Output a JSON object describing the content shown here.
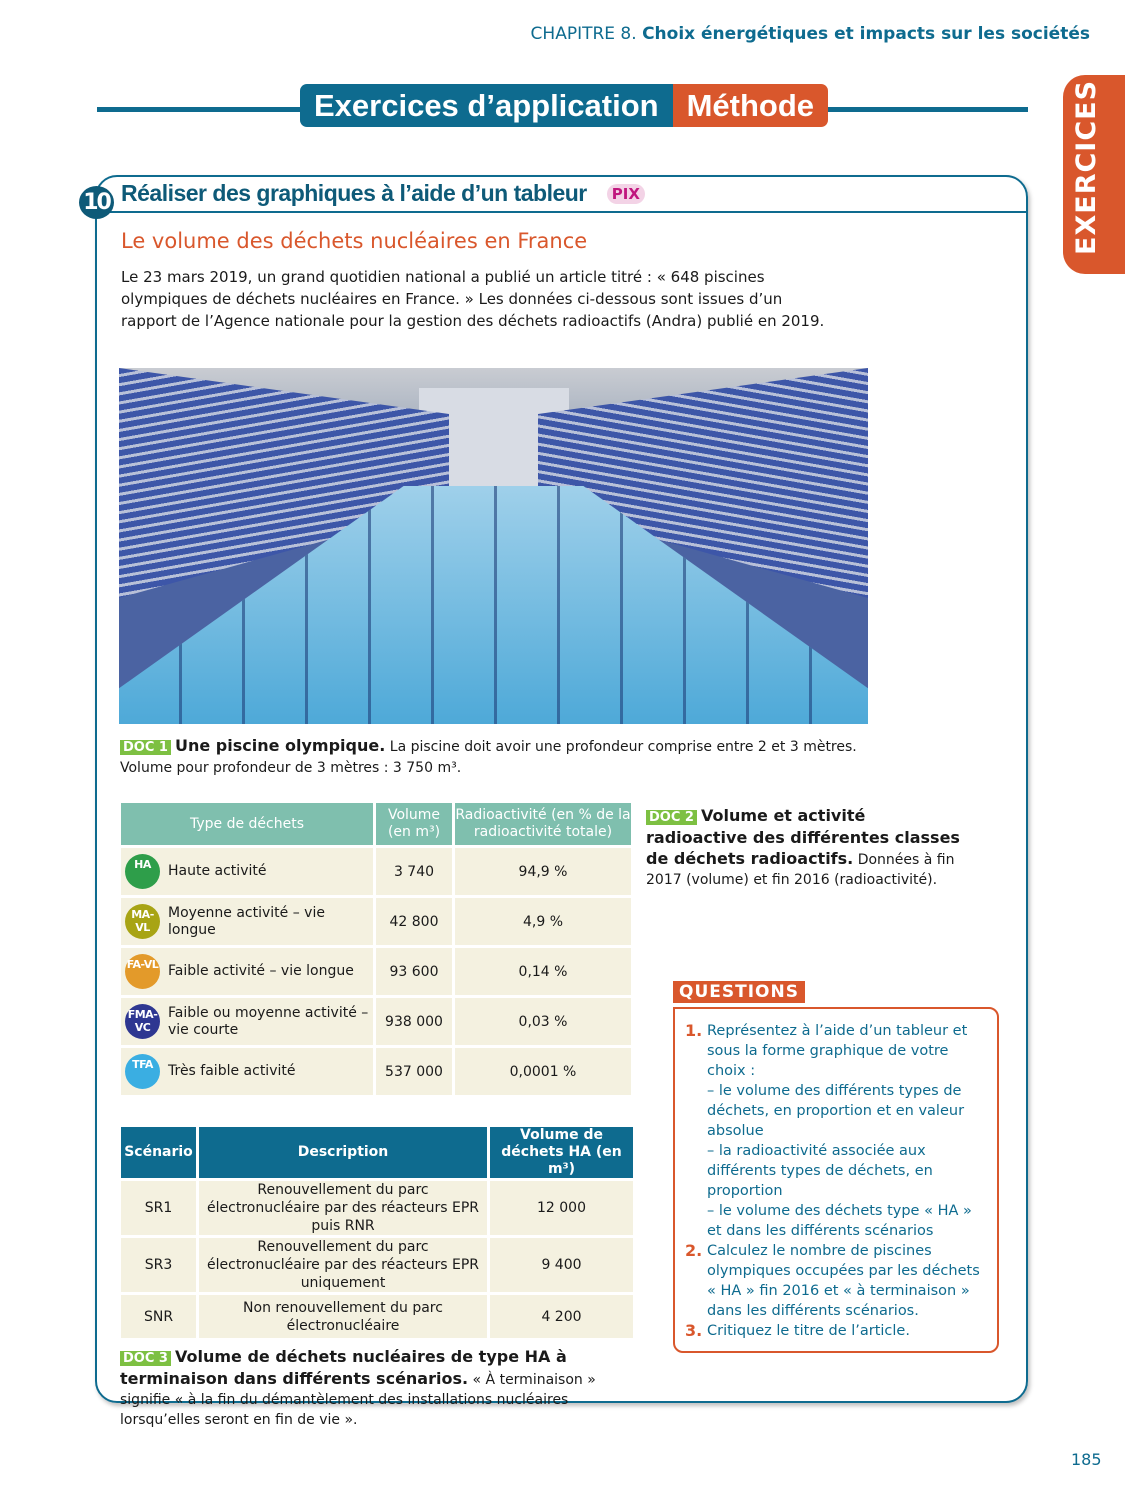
{
  "chapter": {
    "prefix": "CHAPITRE 8.",
    "title": "Choix énergétiques et impacts sur les sociétés"
  },
  "banner": {
    "main": "Exercices d’application",
    "tag": "Méthode"
  },
  "side_tab": "EXERCICES",
  "exercise": {
    "number": "10",
    "title": "Réaliser des graphiques à l’aide d’un tableur",
    "badge": "PIX",
    "subtitle": "Le volume des déchets nucléaires en France",
    "intro": "Le 23 mars 2019, un grand quotidien national a publié un article titré : « 648 piscines olympiques de déchets nucléaires en France. » Les données ci-dessous sont issues d’un rapport de l’Agence nationale pour la gestion des déchets radioactifs (Andra) publié en 2019."
  },
  "doc1": {
    "tag": "DOC 1",
    "title": "Une piscine olympique.",
    "text": "La piscine doit avoir une profondeur comprise entre 2 et 3 mètres. Volume pour profondeur de 3 mètres : 3 750 m³."
  },
  "table1": {
    "headers": [
      "Type de déchets",
      "Volume (en m³)",
      "Radioactivité (en % de la radioactivité totale)"
    ],
    "rows": [
      {
        "code": "HA",
        "color": "#2e9e4a",
        "type": "Haute activité",
        "volume": "3 740",
        "activity": "94,9 %"
      },
      {
        "code": "MA-VL",
        "color": "#a8a414",
        "type": "Moyenne activité – vie longue",
        "volume": "42 800",
        "activity": "4,9 %"
      },
      {
        "code": "FA-VL",
        "color": "#e39a2a",
        "type": "Faible activité – vie longue",
        "volume": "93 600",
        "activity": "0,14 %"
      },
      {
        "code": "FMA-VC",
        "color": "#2e3791",
        "type": "Faible ou moyenne activité – vie courte",
        "volume": "938 000",
        "activity": "0,03 %"
      },
      {
        "code": "TFA",
        "color": "#3aaee2",
        "type": "Très faible activité",
        "volume": "537 000",
        "activity": "0,0001 %"
      }
    ]
  },
  "doc2": {
    "tag": "DOC 2",
    "title": "Volume et activité radioactive des différentes classes de déchets radioactifs.",
    "text": "Données à fin 2017 (volume) et fin 2016 (radioactivité)."
  },
  "table2": {
    "headers": [
      "Scénario",
      "Description",
      "Volume de déchets HA (en m³)"
    ],
    "rows": [
      {
        "scenario": "SR1",
        "description": "Renouvellement du parc électronucléaire par des réacteurs EPR puis RNR",
        "volume": "12 000"
      },
      {
        "scenario": "SR3",
        "description": "Renouvellement du parc électronucléaire par des réacteurs EPR uniquement",
        "volume": "9 400"
      },
      {
        "scenario": "SNR",
        "description": "Non renouvellement du parc électronucléaire",
        "volume": "4 200"
      }
    ]
  },
  "doc3": {
    "tag": "DOC 3",
    "title": "Volume de déchets nucléaires de type HA à terminaison dans différents scénarios.",
    "text": "« À terminaison » signifie « à la fin du démantèlement des installations nucléaires lorsqu’elles seront en fin de vie »."
  },
  "questions": {
    "label": "QUESTIONS",
    "items": [
      {
        "n": "1.",
        "text": "Représentez à l’aide d’un tableur et sous la forme graphique de votre choix :",
        "subs": [
          "– le volume des différents types de déchets, en proportion et en valeur absolue",
          "– la radioactivité associée aux différents types de déchets, en proportion",
          "– le volume des déchets type « HA » et dans les différents scénarios"
        ]
      },
      {
        "n": "2.",
        "text": "Calculez le nombre de piscines olympiques occupées par les déchets « HA » fin 2016 et « à terminaison » dans les différents scénarios."
      },
      {
        "n": "3.",
        "text": "Critiquez le titre de l’article."
      }
    ]
  },
  "page_number": "185"
}
